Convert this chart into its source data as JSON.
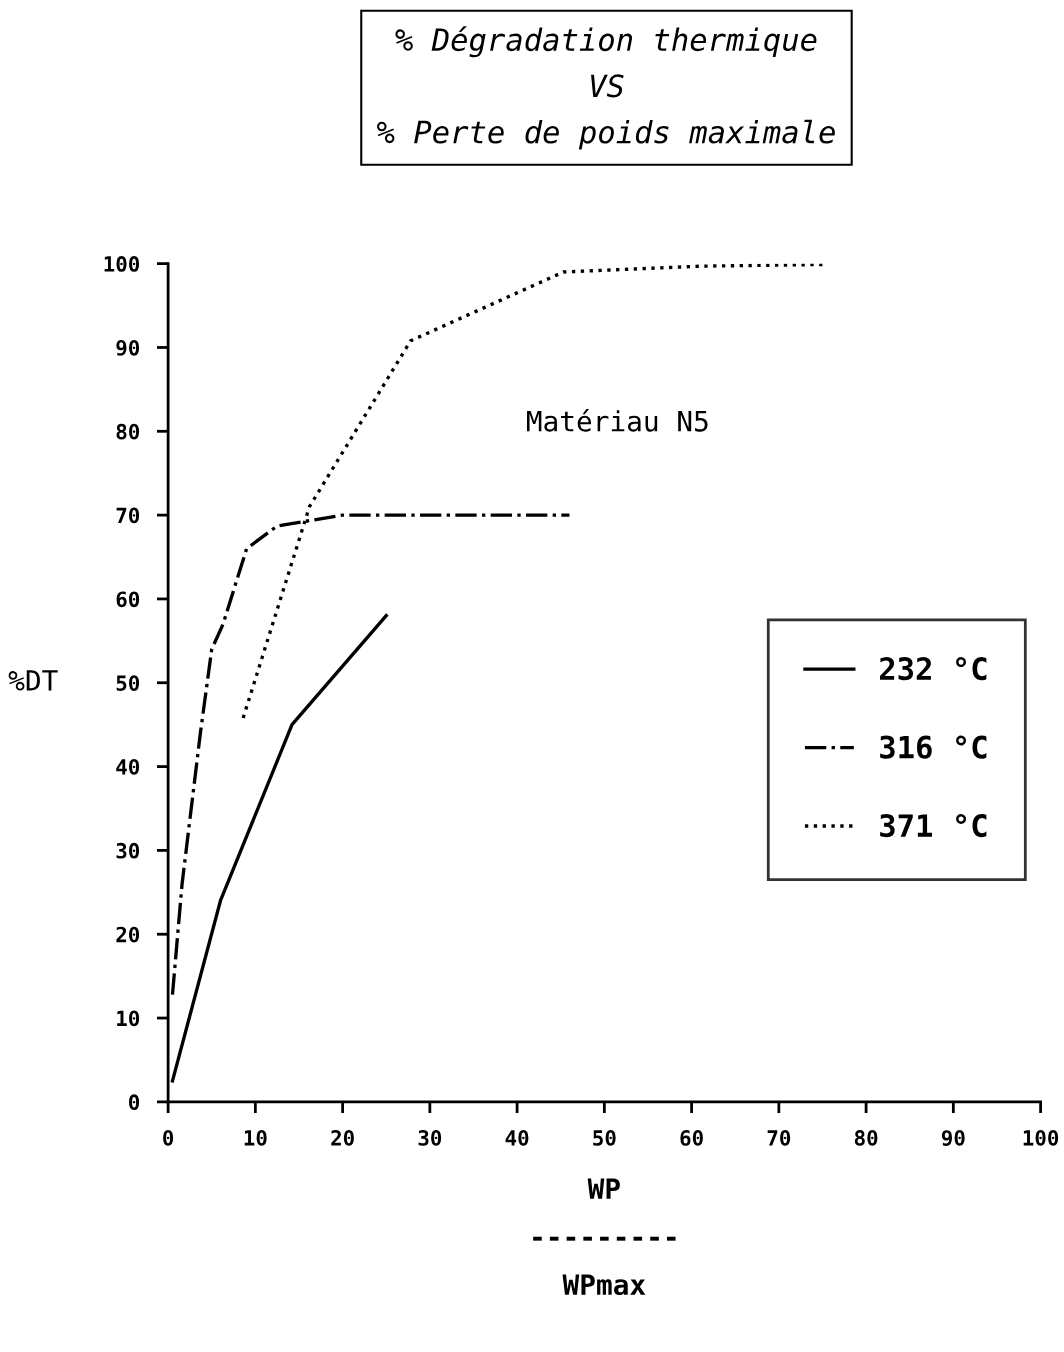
{
  "chart_data": {
    "type": "line",
    "title": "% Dégradation thermique\nVS\n% Perte de poids maximale",
    "xlabel": "WP\n---------\nWPmax",
    "ylabel": "%DT",
    "annotations": [
      "Matériau N5"
    ],
    "xlim": [
      0,
      100
    ],
    "ylim": [
      0,
      100
    ],
    "xticks": [
      0,
      10,
      20,
      30,
      40,
      50,
      60,
      70,
      80,
      90,
      100
    ],
    "yticks": [
      0,
      10,
      20,
      30,
      40,
      50,
      60,
      70,
      80,
      90,
      100
    ],
    "grid": false,
    "legend": "right",
    "marker": "none",
    "series": [
      {
        "name": "232 °C",
        "color": "#000000",
        "line_style": "solid",
        "x": [
          0.5,
          6,
          14.2,
          25
        ],
        "values": [
          2.5,
          24,
          45,
          58
        ]
      },
      {
        "name": "316 °C",
        "color": "#000000",
        "line_style": "dashdot",
        "x": [
          0.5,
          1.6,
          3.7,
          5,
          6.3,
          9,
          12.5,
          20,
          46
        ],
        "values": [
          12.8,
          26,
          44,
          54,
          57,
          66,
          68.7,
          70,
          70
        ]
      },
      {
        "name": "371 °C",
        "color": "#000000",
        "line_style": "dotted",
        "x": [
          8.6,
          16.2,
          27.8,
          45.3,
          61,
          75.6
        ],
        "values": [
          45.8,
          71,
          90.8,
          99,
          99.7,
          99.9
        ]
      }
    ]
  }
}
